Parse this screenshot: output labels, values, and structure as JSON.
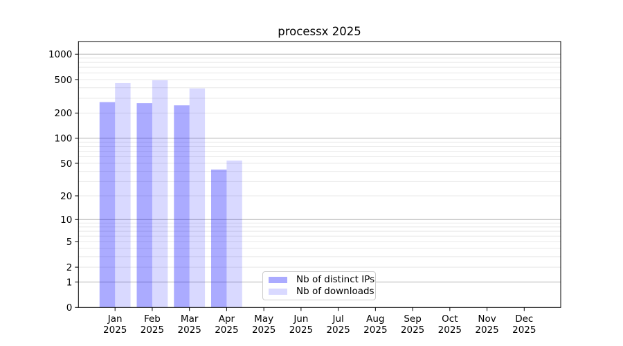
{
  "chart_data": {
    "type": "bar",
    "title": "processx 2025",
    "categories": [
      {
        "label": "Jan",
        "sublabel": "2025"
      },
      {
        "label": "Feb",
        "sublabel": "2025"
      },
      {
        "label": "Mar",
        "sublabel": "2025"
      },
      {
        "label": "Apr",
        "sublabel": "2025"
      },
      {
        "label": "May",
        "sublabel": "2025"
      },
      {
        "label": "Jun",
        "sublabel": "2025"
      },
      {
        "label": "Jul",
        "sublabel": "2025"
      },
      {
        "label": "Aug",
        "sublabel": "2025"
      },
      {
        "label": "Sep",
        "sublabel": "2025"
      },
      {
        "label": "Oct",
        "sublabel": "2025"
      },
      {
        "label": "Nov",
        "sublabel": "2025"
      },
      {
        "label": "Dec",
        "sublabel": "2025"
      }
    ],
    "series": [
      {
        "name": "Nb of distinct IPs",
        "color": "rgba(0,0,255,0.33)",
        "values": [
          270,
          262,
          247,
          42,
          null,
          null,
          null,
          null,
          null,
          null,
          null,
          null
        ]
      },
      {
        "name": "Nb of downloads",
        "color": "rgba(0,0,255,0.15)",
        "values": [
          455,
          490,
          393,
          54,
          null,
          null,
          null,
          null,
          null,
          null,
          null,
          null
        ]
      }
    ],
    "yscale": "log1p",
    "yticks": [
      0,
      1,
      2,
      5,
      10,
      20,
      50,
      100,
      200,
      500,
      1000
    ],
    "ylim": [
      0,
      1000
    ],
    "grid": "horizontal major (decades, gray) and minor (2-9 per decade, light gray)",
    "legend_position": "inside lower-center",
    "colors": {
      "major_grid": "#b2b2b2",
      "minor_grid": "#e8e8e8",
      "spine": "#000000",
      "background": "#ffffff"
    }
  }
}
